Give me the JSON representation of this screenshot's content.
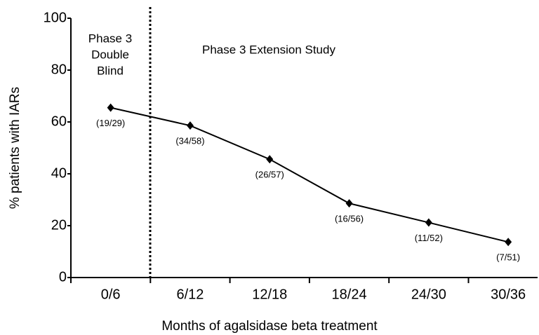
{
  "chart_data": {
    "type": "line",
    "x_label": "Months of agalsidase beta treatment",
    "y_label": "% patients with IARs",
    "categories": [
      "0/6",
      "6/12",
      "12/18",
      "18/24",
      "24/30",
      "30/36"
    ],
    "series": [
      {
        "color": "#000000",
        "values": [
          65.5,
          58.6,
          45.6,
          28.6,
          21.2,
          13.7
        ],
        "value_labels": [
          "(19/29)",
          "(34/58)",
          "(26/57)",
          "(16/56)",
          "(11/52)",
          "(7/51)"
        ]
      }
    ],
    "ylim": [
      0,
      100
    ],
    "yticks": [
      0,
      20,
      40,
      60,
      80,
      100
    ],
    "annotations": [
      [
        "Phase 3",
        "Double",
        "Blind"
      ],
      [
        "Phase 3 Extension Study"
      ]
    ],
    "grid": false
  }
}
